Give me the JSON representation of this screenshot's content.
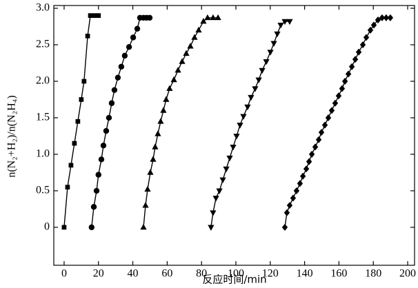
{
  "chart_data": {
    "type": "line",
    "x_label": "反应时间/min",
    "y_label": "n(N₂+H₂)/n(N₂H₄)",
    "xlim": [
      -6,
      204
    ],
    "ylim": [
      -0.52,
      3.0
    ],
    "xticks": [
      0,
      20,
      40,
      60,
      80,
      100,
      120,
      140,
      160,
      180,
      200
    ],
    "yticks": [
      0,
      0.5,
      {
        "value": 1,
        "label": "1.0"
      },
      1.5,
      {
        "value": 2,
        "label": "2.0"
      },
      2.5,
      {
        "value": 3,
        "label": "3.0"
      }
    ],
    "series": [
      {
        "color": "#000000",
        "marker": "square",
        "x": [
          0,
          2,
          4,
          6,
          8,
          10,
          11.6,
          13.7,
          15.3,
          17.7,
          20
        ],
        "values": [
          0,
          0.55,
          0.85,
          1.15,
          1.45,
          1.75,
          2.0,
          2.62,
          2.9,
          2.9,
          2.9
        ]
      },
      {
        "color": "#000000",
        "marker": "circle",
        "x": [
          16,
          17.3,
          18.9,
          20,
          21.7,
          22.9,
          24.5,
          26.1,
          27.7,
          29.3,
          31.3,
          33.3,
          35.3,
          37.8,
          40.2,
          42.6,
          44.2,
          46.2,
          48,
          49.8
        ],
        "values": [
          0,
          0.28,
          0.5,
          0.72,
          0.93,
          1.12,
          1.32,
          1.5,
          1.7,
          1.88,
          2.05,
          2.2,
          2.35,
          2.47,
          2.6,
          2.72,
          2.87,
          2.87,
          2.87,
          2.87
        ]
      },
      {
        "color": "#000000",
        "marker": "triangle-up",
        "x": [
          46.2,
          47.4,
          48.6,
          50.2,
          51.8,
          53,
          54.6,
          56.2,
          57.8,
          59.4,
          61.4,
          63.9,
          66.3,
          68.7,
          71.1,
          73.5,
          75.9,
          78.3,
          81.1,
          83.5,
          86.7,
          89.6
        ],
        "values": [
          0,
          0.3,
          0.52,
          0.75,
          0.93,
          1.1,
          1.28,
          1.45,
          1.6,
          1.75,
          1.9,
          2.02,
          2.15,
          2.27,
          2.38,
          2.48,
          2.6,
          2.7,
          2.82,
          2.87,
          2.87,
          2.87
        ]
      },
      {
        "color": "#000000",
        "marker": "triangle-down",
        "x": [
          85.5,
          86.7,
          88.4,
          90.4,
          92.4,
          94.4,
          96.4,
          98.4,
          100.4,
          102.4,
          104.4,
          106.8,
          108.8,
          111.2,
          113.3,
          115.3,
          117.7,
          120.1,
          122.1,
          124.1,
          126.1,
          128.5,
          131.3
        ],
        "values": [
          0,
          0.2,
          0.4,
          0.5,
          0.65,
          0.8,
          0.95,
          1.1,
          1.25,
          1.4,
          1.52,
          1.65,
          1.78,
          1.9,
          2.02,
          2.15,
          2.27,
          2.4,
          2.52,
          2.65,
          2.77,
          2.82,
          2.82
        ]
      },
      {
        "color": "#000000",
        "marker": "diamond",
        "x": [
          128.5,
          129.7,
          131.3,
          133.3,
          135.3,
          137.3,
          139,
          141,
          142.6,
          144.2,
          146.2,
          148.2,
          149.8,
          151.8,
          153.8,
          155.8,
          157.8,
          159.8,
          161.8,
          163.5,
          165.5,
          167.5,
          169.5,
          171.5,
          173.9,
          175.9,
          178.3,
          180.3,
          182.7,
          185.1,
          187.5,
          189.9
        ],
        "values": [
          0,
          0.2,
          0.3,
          0.4,
          0.5,
          0.6,
          0.7,
          0.8,
          0.9,
          1.0,
          1.1,
          1.2,
          1.3,
          1.4,
          1.5,
          1.6,
          1.7,
          1.8,
          1.9,
          2.0,
          2.1,
          2.2,
          2.3,
          2.4,
          2.5,
          2.6,
          2.7,
          2.77,
          2.84,
          2.87,
          2.87,
          2.87
        ]
      }
    ]
  }
}
